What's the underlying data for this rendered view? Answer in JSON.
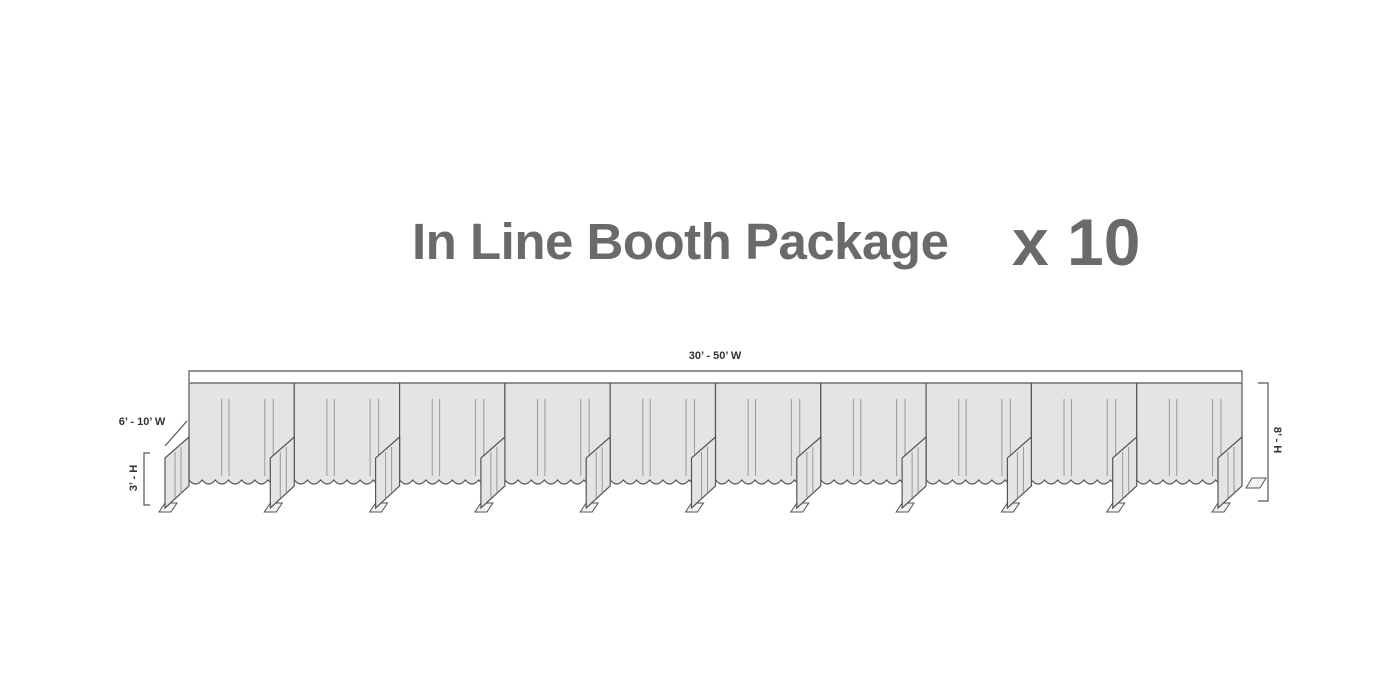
{
  "title": "In Line Booth Package",
  "multiplier": "x 10",
  "dimensions": {
    "total_width": "30’ - 50’ W",
    "booth_depth": "6’ - 10’ W",
    "side_height": "3’ - H",
    "back_height": "8’ - H"
  },
  "booth_count": 10,
  "colors": {
    "panel_fill": "#e4e4e4",
    "line": "#555555",
    "title": "#6a6a6a"
  }
}
